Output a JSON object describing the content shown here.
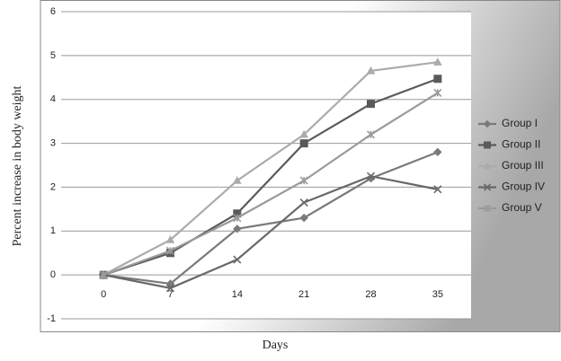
{
  "chart_data": {
    "type": "line",
    "categories": [
      "0",
      "7",
      "14",
      "21",
      "28",
      "35"
    ],
    "x_label": "Days",
    "y_label": "Percent increase in body weight",
    "ylim": [
      -1,
      6
    ],
    "yticks": [
      -1,
      0,
      1,
      2,
      3,
      4,
      5,
      6
    ],
    "grid": true,
    "legend": "right",
    "series": [
      {
        "name": "Group I",
        "color": "#7a7a7a",
        "marker": "diamond",
        "values": [
          0,
          -0.2,
          1.05,
          1.3,
          2.2,
          2.8
        ]
      },
      {
        "name": "Group II",
        "color": "#5a5a5a",
        "marker": "square",
        "values": [
          0,
          0.5,
          1.4,
          3.0,
          3.9,
          4.47
        ]
      },
      {
        "name": "Group III",
        "color": "#ababab",
        "marker": "triangle",
        "values": [
          0,
          0.8,
          2.15,
          3.2,
          4.65,
          4.85
        ]
      },
      {
        "name": "Group IV",
        "color": "#686868",
        "marker": "x",
        "values": [
          0,
          -0.3,
          0.35,
          1.65,
          2.25,
          1.95
        ]
      },
      {
        "name": "Group V",
        "color": "#9a9a9a",
        "marker": "star",
        "values": [
          0,
          0.55,
          1.3,
          2.15,
          3.2,
          4.15
        ]
      }
    ]
  }
}
